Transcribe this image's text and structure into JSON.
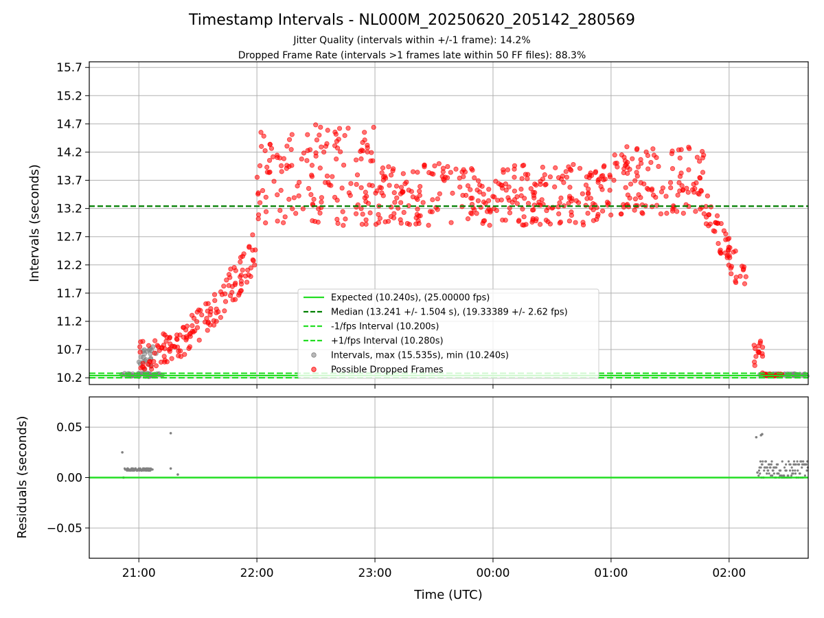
{
  "chart_data": [
    {
      "type": "scatter",
      "title": "Timestamp Intervals - NL000M_20250620_205142_280569",
      "subtitle_lines": [
        "Jitter Quality (intervals within +/-1 frame): 14.2%",
        "Dropped Frame Rate (intervals >1 frames late within 50 FF files): 88.3%"
      ],
      "xlabel": "",
      "ylabel": "Intervals (seconds)",
      "x_ticks": [
        "21:00",
        "22:00",
        "23:00",
        "00:00",
        "01:00",
        "02:00"
      ],
      "y_ticks": [
        "10.2",
        "10.7",
        "11.2",
        "11.7",
        "12.2",
        "12.7",
        "13.2",
        "13.7",
        "14.2",
        "14.7",
        "15.2",
        "15.7"
      ],
      "ylim": [
        10.2,
        15.7
      ],
      "x_hours_range": [
        20.58,
        26.67
      ],
      "grid": true,
      "legend_position": "lower center",
      "legend": [
        {
          "label": "Expected (10.240s), (25.00000 fps)",
          "kind": "line",
          "color": "#22dd22",
          "dash": "solid"
        },
        {
          "label": "Median (13.241 +/- 1.504 s), (19.33389 +/- 2.62 fps)",
          "kind": "line",
          "color": "#007f00",
          "dash": "dashed"
        },
        {
          "label": "-1/fps Interval (10.200s)",
          "kind": "line",
          "color": "#22dd22",
          "dash": "dashed"
        },
        {
          "label": "+1/fps Interval (10.280s)",
          "kind": "line",
          "color": "#22dd22",
          "dash": "dashed"
        },
        {
          "label": "Intervals, max (15.535s), min (10.240s)",
          "kind": "point",
          "color": "#808080"
        },
        {
          "label": "Possible Dropped Frames",
          "kind": "point",
          "color": "#ff0000"
        }
      ],
      "reference_lines": {
        "expected": 10.24,
        "median": 13.241,
        "minus_fps": 10.2,
        "plus_fps": 10.28
      },
      "series": [
        {
          "name": "Possible Dropped Frames",
          "segments": [
            {
              "x_start_hours": 21.0,
              "x_end_hours": 21.33,
              "y_start": 10.55,
              "y_end": 10.8,
              "spread": 0.28
            },
            {
              "x_start_hours": 21.33,
              "x_end_hours": 21.67,
              "y_start": 10.8,
              "y_end": 11.45,
              "spread": 0.3
            },
            {
              "x_start_hours": 21.67,
              "x_end_hours": 22.0,
              "y_start": 11.45,
              "y_end": 12.5,
              "spread": 0.35
            },
            {
              "x_start_hours": 22.0,
              "x_end_hours": 23.0,
              "y_center": 13.8,
              "spread": 0.9
            },
            {
              "x_start_hours": 23.0,
              "x_end_hours": 25.0,
              "y_center": 13.45,
              "spread": 0.55
            },
            {
              "x_start_hours": 25.0,
              "x_end_hours": 25.8,
              "y_center": 13.7,
              "spread": 0.6
            },
            {
              "x_start_hours": 25.8,
              "x_end_hours": 26.15,
              "y_start": 13.2,
              "y_end": 11.8,
              "spread": 0.3
            },
            {
              "x_start_hours": 26.2,
              "x_end_hours": 26.3,
              "y_center": 10.6,
              "spread": 0.35
            },
            {
              "x_start_hours": 26.3,
              "x_end_hours": 26.45,
              "y_center": 10.25,
              "spread": 0.02
            }
          ]
        },
        {
          "name": "Intervals, max (15.535s), min (10.240s)",
          "segments": [
            {
              "x_start_hours": 20.85,
              "x_end_hours": 21.2,
              "y_center": 10.25,
              "spread": 0.03
            },
            {
              "x_start_hours": 21.0,
              "x_end_hours": 21.15,
              "y_center": 10.55,
              "spread": 0.2
            },
            {
              "x_start_hours": 26.25,
              "x_end_hours": 26.67,
              "y_center": 10.25,
              "spread": 0.02
            }
          ]
        }
      ]
    },
    {
      "type": "scatter",
      "xlabel": "Time (UTC)",
      "ylabel": "Residuals (seconds)",
      "x_ticks": [
        "21:00",
        "22:00",
        "23:00",
        "00:00",
        "01:00",
        "02:00"
      ],
      "y_ticks": [
        "0.05",
        "0.00",
        "−0.05"
      ],
      "ylim": [
        -0.08,
        0.08
      ],
      "grid": true,
      "zero_line_color": "#22dd22",
      "series": [
        {
          "name": "Residuals",
          "color": "#808080",
          "points": [
            {
              "x_hours": 20.86,
              "y": 0.025
            },
            {
              "x_hours": 20.87,
              "y": 0.0
            },
            {
              "x_hours": 21.27,
              "y": 0.044
            },
            {
              "x_hours": 21.33,
              "y": 0.003
            },
            {
              "x_hours": 21.27,
              "y": 0.009
            },
            {
              "x_hours": 26.23,
              "y": 0.04
            },
            {
              "x_hours": 26.27,
              "y": 0.042
            },
            {
              "x_hours": 26.28,
              "y": 0.043
            },
            {
              "x_hours": 26.24,
              "y": 0.005
            }
          ],
          "bands": [
            {
              "x_start_hours": 20.88,
              "x_end_hours": 21.12,
              "y_values": [
                0.007,
                0.008,
                0.009
              ]
            },
            {
              "x_start_hours": 26.25,
              "x_end_hours": 26.67,
              "y_values": [
                0.0,
                0.002,
                0.004,
                0.007,
                0.01,
                0.013,
                0.016
              ]
            }
          ]
        }
      ]
    }
  ]
}
